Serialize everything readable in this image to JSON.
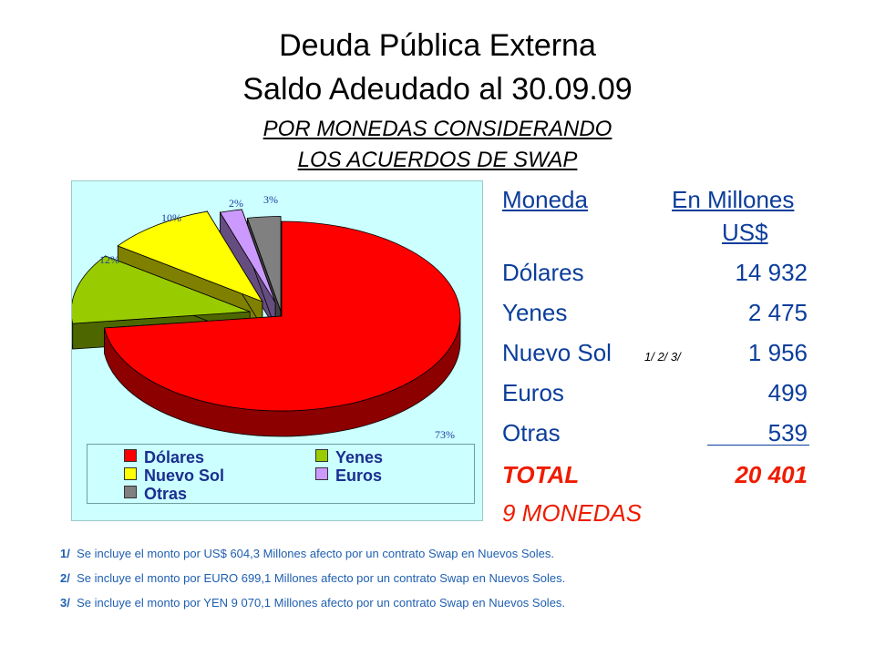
{
  "title": {
    "line1": "Deuda Pública Externa",
    "line2": "Saldo Adeudado al 30.09.09",
    "line3": "POR MONEDAS CONSIDERANDO",
    "line4": "LOS ACUERDOS DE SWAP"
  },
  "chart_data": {
    "type": "pie",
    "categories": [
      "Dólares",
      "Yenes",
      "Nuevo Sol",
      "Euros",
      "Otras"
    ],
    "values": [
      73,
      12,
      10,
      2,
      3
    ],
    "labels": [
      "73%",
      "12%",
      "10%",
      "2%",
      "3%"
    ],
    "colors": [
      "#ff0000",
      "#99cc00",
      "#ffff00",
      "#cc99ff",
      "#808080"
    ],
    "legend_placement": "bottom"
  },
  "legend": [
    "Dólares",
    "Yenes",
    "Nuevo Sol",
    "Euros",
    "Otras"
  ],
  "table": {
    "col1_header": "Moneda",
    "col2_header_line1": "En Millones",
    "col2_header_line2": "US$",
    "rows": [
      {
        "name": "Dólares",
        "value": "14 932"
      },
      {
        "name": "Yenes",
        "value": "2 475"
      },
      {
        "name": "Nuevo Sol",
        "value": "1 956",
        "note": "1/  2/  3/"
      },
      {
        "name": "Euros",
        "value": "499"
      },
      {
        "name": "Otras",
        "value": "539"
      }
    ],
    "total_label": "TOTAL",
    "total_value": "20 401",
    "count_label": "9  MONEDAS"
  },
  "footnotes": [
    {
      "mark": "1/",
      "text": "Se incluye el monto por US$ 604,3 Millones afecto por un contrato Swap en Nuevos Soles."
    },
    {
      "mark": "2/",
      "text": "Se incluye el monto por EURO 699,1 Millones afecto por un contrato Swap en Nuevos Soles."
    },
    {
      "mark": "3/",
      "text": "Se incluye el monto por YEN 9 070,1 Millones afecto por un contrato Swap en Nuevos Soles."
    }
  ]
}
